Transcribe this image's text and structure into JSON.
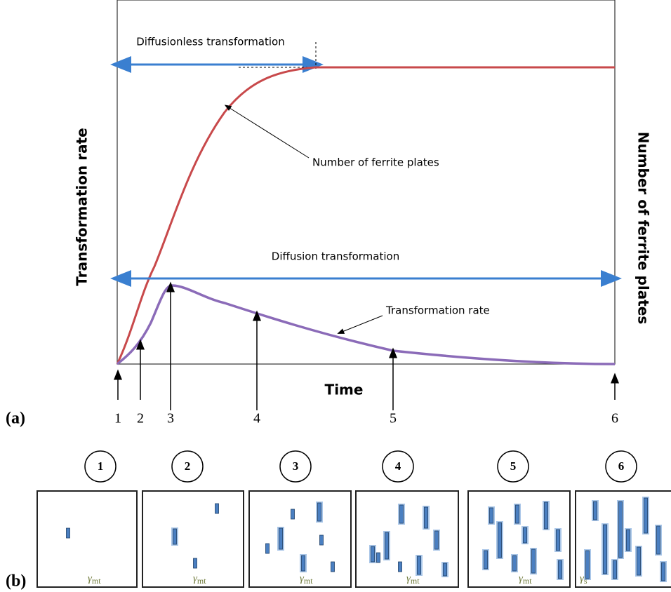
{
  "panel_a": {
    "label": "(a)",
    "y_axis_left": "Transformation rate",
    "y_axis_right": "Number of ferrite plates",
    "x_axis": "Time",
    "annotations": {
      "diffusionless": "Diffusionless transformation",
      "diffusion": "Diffusion transformation",
      "ferrite_curve": "Number of ferrite plates",
      "rate_curve": "Transformation rate"
    },
    "stages": [
      "1",
      "2",
      "3",
      "4",
      "5",
      "6"
    ]
  },
  "panel_b": {
    "label": "(b)",
    "stages": [
      "1",
      "2",
      "3",
      "4",
      "5",
      "6"
    ],
    "phases": [
      {
        "symbol": "γ",
        "subscript": "mt"
      },
      {
        "symbol": "γ",
        "subscript": "mt"
      },
      {
        "symbol": "γ",
        "subscript": "mt"
      },
      {
        "symbol": "γ",
        "subscript": "mt"
      },
      {
        "symbol": "γ",
        "subscript": "mt"
      },
      {
        "symbol": "γ",
        "subscript": "s"
      }
    ]
  }
}
